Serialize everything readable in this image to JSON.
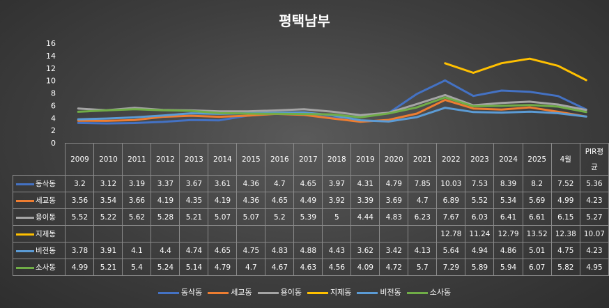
{
  "chart_data": {
    "type": "line",
    "title": "평택남부",
    "ylim": [
      0,
      16
    ],
    "yticks": [
      0,
      2,
      4,
      6,
      8,
      10,
      12,
      14,
      16
    ],
    "categories": [
      "2009",
      "2010",
      "2011",
      "2012",
      "2013",
      "2014",
      "2015",
      "2016",
      "2017",
      "2018",
      "2019",
      "2020",
      "2021",
      "2022",
      "2023",
      "2024",
      "2025",
      "4월",
      "PIR평균"
    ],
    "series": [
      {
        "name": "동삭동",
        "color": "#4472C4",
        "values": [
          3.2,
          3.12,
          3.19,
          3.37,
          3.67,
          3.61,
          4.36,
          4.7,
          4.65,
          3.97,
          4.31,
          4.79,
          7.85,
          10.03,
          7.53,
          8.39,
          8.2,
          7.52,
          5.36
        ]
      },
      {
        "name": "세교동",
        "color": "#ED7D31",
        "values": [
          3.56,
          3.54,
          3.66,
          4.19,
          4.35,
          4.19,
          4.36,
          4.65,
          4.49,
          3.92,
          3.39,
          3.69,
          4.7,
          6.89,
          5.52,
          5.34,
          5.69,
          4.99,
          4.23
        ]
      },
      {
        "name": "용이동",
        "color": "#A5A5A5",
        "values": [
          5.52,
          5.22,
          5.62,
          5.28,
          5.21,
          5.07,
          5.07,
          5.2,
          5.39,
          5,
          4.44,
          4.83,
          6.23,
          7.67,
          6.03,
          6.41,
          6.61,
          6.15,
          5.27
        ]
      },
      {
        "name": "지제동",
        "color": "#FFC000",
        "values": [
          null,
          null,
          null,
          null,
          null,
          null,
          null,
          null,
          null,
          null,
          null,
          null,
          null,
          12.78,
          11.24,
          12.79,
          13.52,
          12.38,
          10.07
        ]
      },
      {
        "name": "비전동",
        "color": "#5B9BD5",
        "values": [
          3.78,
          3.91,
          4.1,
          4.4,
          4.74,
          4.65,
          4.75,
          4.83,
          4.88,
          4.43,
          3.62,
          3.42,
          4.13,
          5.64,
          4.94,
          4.86,
          5.01,
          4.75,
          4.23
        ]
      },
      {
        "name": "소사동",
        "color": "#70AD47",
        "values": [
          4.99,
          5.21,
          5.4,
          5.24,
          5.14,
          4.79,
          4.7,
          4.67,
          4.63,
          4.56,
          4.09,
          4.72,
          5.7,
          7.29,
          5.89,
          5.94,
          6.07,
          5.82,
          4.95
        ]
      }
    ],
    "table": {
      "category_labels": [
        "2009",
        "2010",
        "2011",
        "2012",
        "2013",
        "2014",
        "2015",
        "2016",
        "2017",
        "2018",
        "2019",
        "2020",
        "2021",
        "2022",
        "2023",
        "2024",
        "2025",
        "4월",
        "PIR평\n균"
      ],
      "rows": [
        [
          "3.2",
          "3.12",
          "3.19",
          "3.37",
          "3.67",
          "3.61",
          "4.36",
          "4.7",
          "4.65",
          "3.97",
          "4.31",
          "4.79",
          "7.85",
          "10.03",
          "7.53",
          "8.39",
          "8.2",
          "7.52",
          "5.36"
        ],
        [
          "3.56",
          "3.54",
          "3.66",
          "4.19",
          "4.35",
          "4.19",
          "4.36",
          "4.65",
          "4.49",
          "3.92",
          "3.39",
          "3.69",
          "4.7",
          "6.89",
          "5.52",
          "5.34",
          "5.69",
          "4.99",
          "4.23"
        ],
        [
          "5.52",
          "5.22",
          "5.62",
          "5.28",
          "5.21",
          "5.07",
          "5.07",
          "5.2",
          "5.39",
          "5",
          "4.44",
          "4.83",
          "6.23",
          "7.67",
          "6.03",
          "6.41",
          "6.61",
          "6.15",
          "5.27"
        ],
        [
          "",
          "",
          "",
          "",
          "",
          "",
          "",
          "",
          "",
          "",
          "",
          "",
          "",
          "12.78",
          "11.24",
          "12.79",
          "13.52",
          "12.38",
          "10.07"
        ],
        [
          "3.78",
          "3.91",
          "4.1",
          "4.4",
          "4.74",
          "4.65",
          "4.75",
          "4.83",
          "4.88",
          "4.43",
          "3.62",
          "3.42",
          "4.13",
          "5.64",
          "4.94",
          "4.86",
          "5.01",
          "4.75",
          "4.23"
        ],
        [
          "4.99",
          "5.21",
          "5.4",
          "5.24",
          "5.14",
          "4.79",
          "4.7",
          "4.67",
          "4.63",
          "4.56",
          "4.09",
          "4.72",
          "5.7",
          "7.29",
          "5.89",
          "5.94",
          "6.07",
          "5.82",
          "4.95"
        ]
      ]
    },
    "legend_position": "bottom"
  }
}
